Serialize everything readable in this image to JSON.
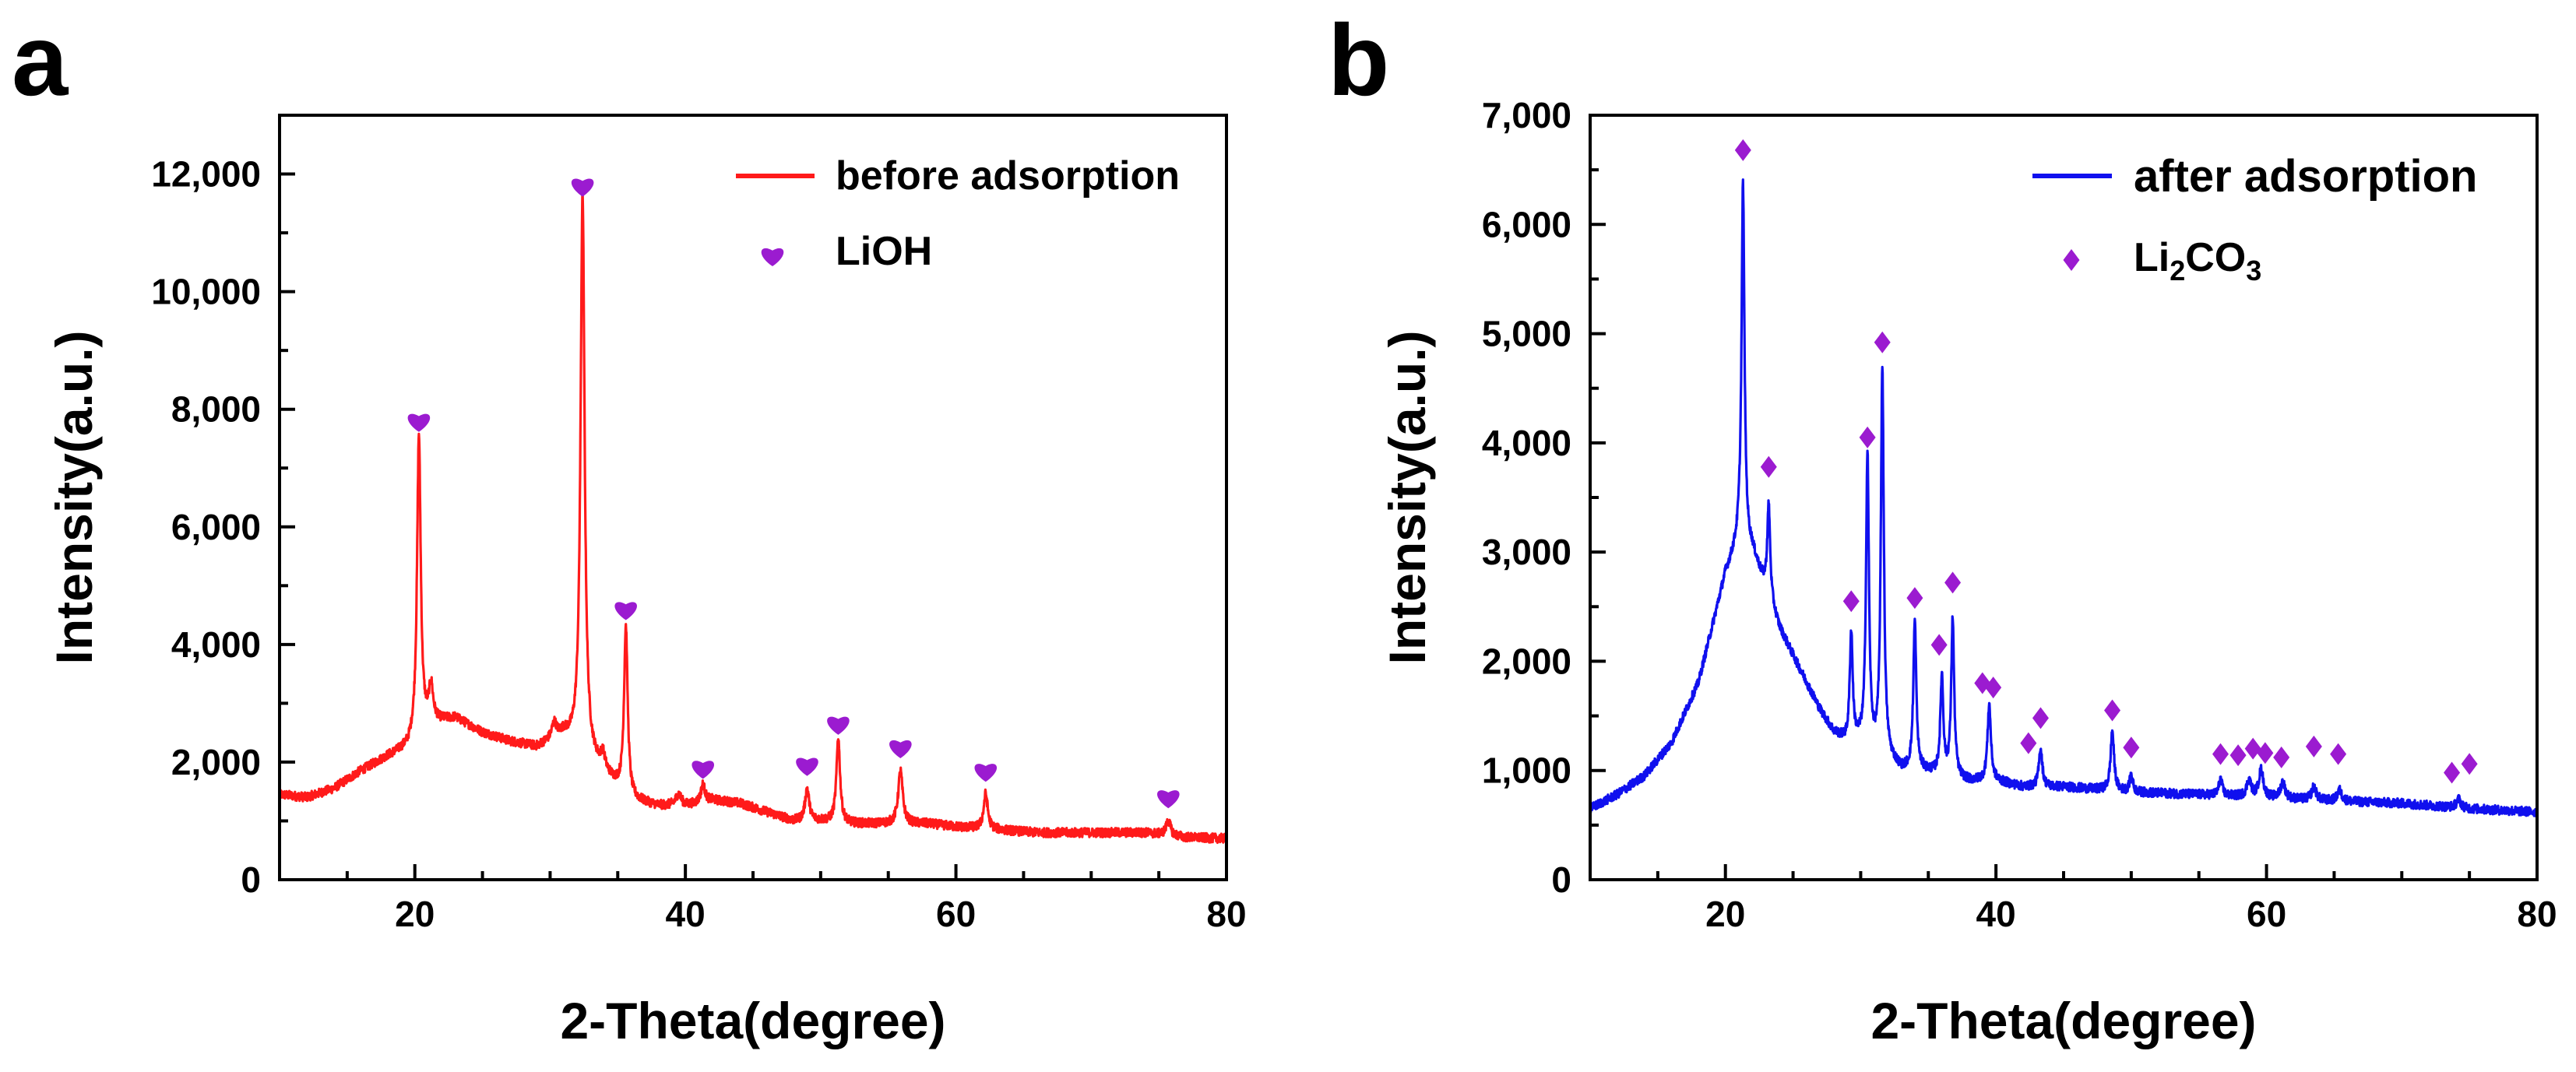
{
  "chart_data": [
    {
      "type": "line",
      "panel_label": "a",
      "xlabel": "2-Theta(degree)",
      "ylabel": "Intensity(a.u.)",
      "xlim": [
        10,
        80
      ],
      "ylim": [
        0,
        13000
      ],
      "x_ticks": [
        20,
        40,
        60,
        80
      ],
      "x_tick_labels": [
        "20",
        "40",
        "60",
        "80"
      ],
      "y_ticks": [
        0,
        2000,
        4000,
        6000,
        8000,
        10000,
        12000
      ],
      "y_tick_labels": [
        "0",
        "2,000",
        "4,000",
        "6,000",
        "8,000",
        "10,000",
        "12,000"
      ],
      "legend_position": "top-right",
      "series": [
        {
          "name": "before adsorption",
          "color": "#ff1a1a",
          "baseline": [
            [
              10,
              1450
            ],
            [
              12,
              1400
            ],
            [
              14,
              1550
            ],
            [
              16,
              1850
            ],
            [
              18,
              2100
            ],
            [
              19.5,
              2250
            ],
            [
              21,
              2650
            ],
            [
              23,
              2750
            ],
            [
              25,
              2500
            ],
            [
              27,
              2350
            ],
            [
              29,
              2250
            ],
            [
              31,
              2450
            ],
            [
              33,
              2000
            ],
            [
              34,
              1800
            ],
            [
              36,
              1350
            ],
            [
              38,
              1250
            ],
            [
              40,
              1250
            ],
            [
              42,
              1350
            ],
            [
              44,
              1300
            ],
            [
              46,
              1150
            ],
            [
              48,
              1000
            ],
            [
              50,
              1000
            ],
            [
              52,
              950
            ],
            [
              55,
              950
            ],
            [
              58,
              950
            ],
            [
              60,
              900
            ],
            [
              63,
              850
            ],
            [
              66,
              800
            ],
            [
              70,
              800
            ],
            [
              74,
              800
            ],
            [
              77,
              720
            ],
            [
              80,
              700
            ]
          ],
          "peaks": [
            [
              20.3,
              5100,
              0.16
            ],
            [
              21.2,
              600,
              0.18
            ],
            [
              30.3,
              250,
              0.2
            ],
            [
              32.4,
              9500,
              0.18
            ],
            [
              33.9,
              250,
              0.2
            ],
            [
              35.6,
              2850,
              0.16
            ],
            [
              39.5,
              200,
              0.25
            ],
            [
              41.3,
              300,
              0.18
            ],
            [
              49.0,
              550,
              0.18
            ],
            [
              51.3,
              1450,
              0.16
            ],
            [
              55.9,
              900,
              0.2
            ],
            [
              62.2,
              600,
              0.18
            ],
            [
              75.7,
              250,
              0.2
            ]
          ]
        },
        {
          "name": "LiOH",
          "marker": "heart",
          "color": "#9b1bd0",
          "points": [
            [
              20.3,
              7800
            ],
            [
              32.4,
              11800
            ],
            [
              35.6,
              4600
            ],
            [
              41.3,
              1900
            ],
            [
              49.0,
              1950
            ],
            [
              51.3,
              2650
            ],
            [
              55.9,
              2250
            ],
            [
              62.2,
              1850
            ],
            [
              75.7,
              1400
            ]
          ]
        }
      ]
    },
    {
      "type": "line",
      "panel_label": "b",
      "xlabel": "2-Theta(degree)",
      "ylabel": "Intensity(a.u.)",
      "xlim": [
        10,
        80
      ],
      "ylim": [
        0,
        7000
      ],
      "x_ticks": [
        20,
        40,
        60,
        80
      ],
      "x_tick_labels": [
        "20",
        "40",
        "60",
        "80"
      ],
      "y_ticks": [
        0,
        1000,
        2000,
        3000,
        4000,
        5000,
        6000,
        7000
      ],
      "y_tick_labels": [
        "0",
        "1,000",
        "2,000",
        "3,000",
        "4,000",
        "5,000",
        "6,000",
        "7,000"
      ],
      "legend_position": "top-right",
      "series": [
        {
          "name": "after adsorption",
          "color": "#1010ee",
          "baseline": [
            [
              10,
              650
            ],
            [
              12,
              780
            ],
            [
              14,
              950
            ],
            [
              16,
              1250
            ],
            [
              18,
              1800
            ],
            [
              19,
              2300
            ],
            [
              20,
              2800
            ],
            [
              21,
              3100
            ],
            [
              22,
              3000
            ],
            [
              23,
              2650
            ],
            [
              24,
              2300
            ],
            [
              25,
              2050
            ],
            [
              26,
              1800
            ],
            [
              27,
              1550
            ],
            [
              28,
              1350
            ],
            [
              29,
              1250
            ],
            [
              30,
              1250
            ],
            [
              31,
              1150
            ],
            [
              32,
              1100
            ],
            [
              33,
              1000
            ],
            [
              34,
              1000
            ],
            [
              35,
              980
            ],
            [
              36,
              950
            ],
            [
              38,
              900
            ],
            [
              40,
              900
            ],
            [
              42,
              850
            ],
            [
              45,
              850
            ],
            [
              48,
              820
            ],
            [
              50,
              800
            ],
            [
              55,
              780
            ],
            [
              60,
              750
            ],
            [
              65,
              720
            ],
            [
              70,
              700
            ],
            [
              75,
              650
            ],
            [
              80,
              620
            ]
          ],
          "peaks": [
            [
              21.3,
              3300,
              0.13
            ],
            [
              23.2,
              850,
              0.13
            ],
            [
              29.3,
              1000,
              0.13
            ],
            [
              30.5,
              2650,
              0.13
            ],
            [
              31.6,
              3550,
              0.13
            ],
            [
              34.0,
              1350,
              0.13
            ],
            [
              36.0,
              900,
              0.13
            ],
            [
              36.8,
              1450,
              0.13
            ],
            [
              39.5,
              700,
              0.15
            ],
            [
              43.3,
              350,
              0.15
            ],
            [
              48.6,
              550,
              0.15
            ],
            [
              50.0,
              150,
              0.15
            ],
            [
              56.6,
              150,
              0.15
            ],
            [
              58.7,
              150,
              0.2
            ],
            [
              59.6,
              250,
              0.2
            ],
            [
              61.2,
              150,
              0.2
            ],
            [
              63.5,
              120,
              0.2
            ],
            [
              65.4,
              100,
              0.2
            ],
            [
              74.2,
              80,
              0.2
            ]
          ]
        },
        {
          "name": "Li2CO3",
          "marker": "diamond",
          "color": "#9b1bd0",
          "points": [
            [
              21.3,
              6680
            ],
            [
              23.2,
              3780
            ],
            [
              29.3,
              2550
            ],
            [
              30.5,
              4050
            ],
            [
              31.6,
              4920
            ],
            [
              34.0,
              2580
            ],
            [
              35.8,
              2150
            ],
            [
              36.8,
              2720
            ],
            [
              39.0,
              1800
            ],
            [
              39.8,
              1760
            ],
            [
              42.4,
              1250
            ],
            [
              43.3,
              1480
            ],
            [
              48.6,
              1550
            ],
            [
              50.0,
              1210
            ],
            [
              56.6,
              1150
            ],
            [
              57.9,
              1140
            ],
            [
              59.0,
              1200
            ],
            [
              59.9,
              1160
            ],
            [
              61.1,
              1120
            ],
            [
              63.5,
              1220
            ],
            [
              65.3,
              1150
            ],
            [
              73.7,
              980
            ],
            [
              75.0,
              1060
            ]
          ]
        }
      ],
      "legend_entries": [
        {
          "text": "after adsorption"
        },
        {
          "base": "Li",
          "sub1": "2",
          "mid": "CO",
          "sub2": "3"
        }
      ]
    }
  ]
}
